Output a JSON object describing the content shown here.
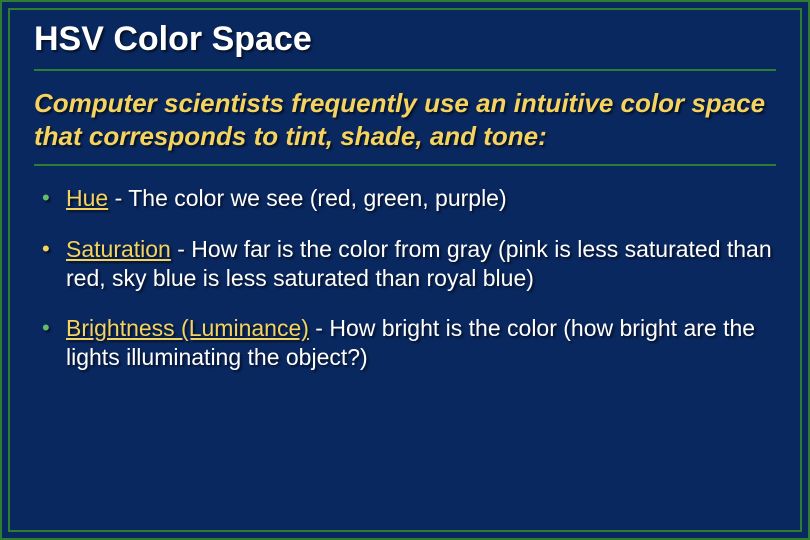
{
  "slide": {
    "title": "HSV Color Space",
    "intro": "Computer scientists frequently use an intuitive color space that corresponds to tint, shade, and tone:",
    "bullets": [
      {
        "term": "Hue",
        "desc": " - The color we see (red, green, purple)"
      },
      {
        "term": "Saturation",
        "desc": " - How far is the color from gray (pink is less saturated than red, sky blue is less saturated than royal blue)"
      },
      {
        "term": "Brightness (Luminance)",
        "desc": " - How bright is the color (how bright are the lights illuminating the object?)"
      }
    ],
    "style": {
      "background_color": "#0a2860",
      "border_color": "#2e7d32",
      "title_color": "#ffffff",
      "intro_color": "#f4d35e",
      "body_text_color": "#ffffff",
      "term_color": "#f4d35e",
      "bullet_colors": [
        "#66bb6a",
        "#f4d35e",
        "#66bb6a"
      ],
      "title_fontsize": 34,
      "intro_fontsize": 26,
      "body_fontsize": 23,
      "font_family": "Arial",
      "slide_width": 810,
      "slide_height": 540,
      "outer_border_width": 2,
      "inner_border_width": 2,
      "shadow_color": "rgba(0,0,0,0.6)"
    }
  }
}
